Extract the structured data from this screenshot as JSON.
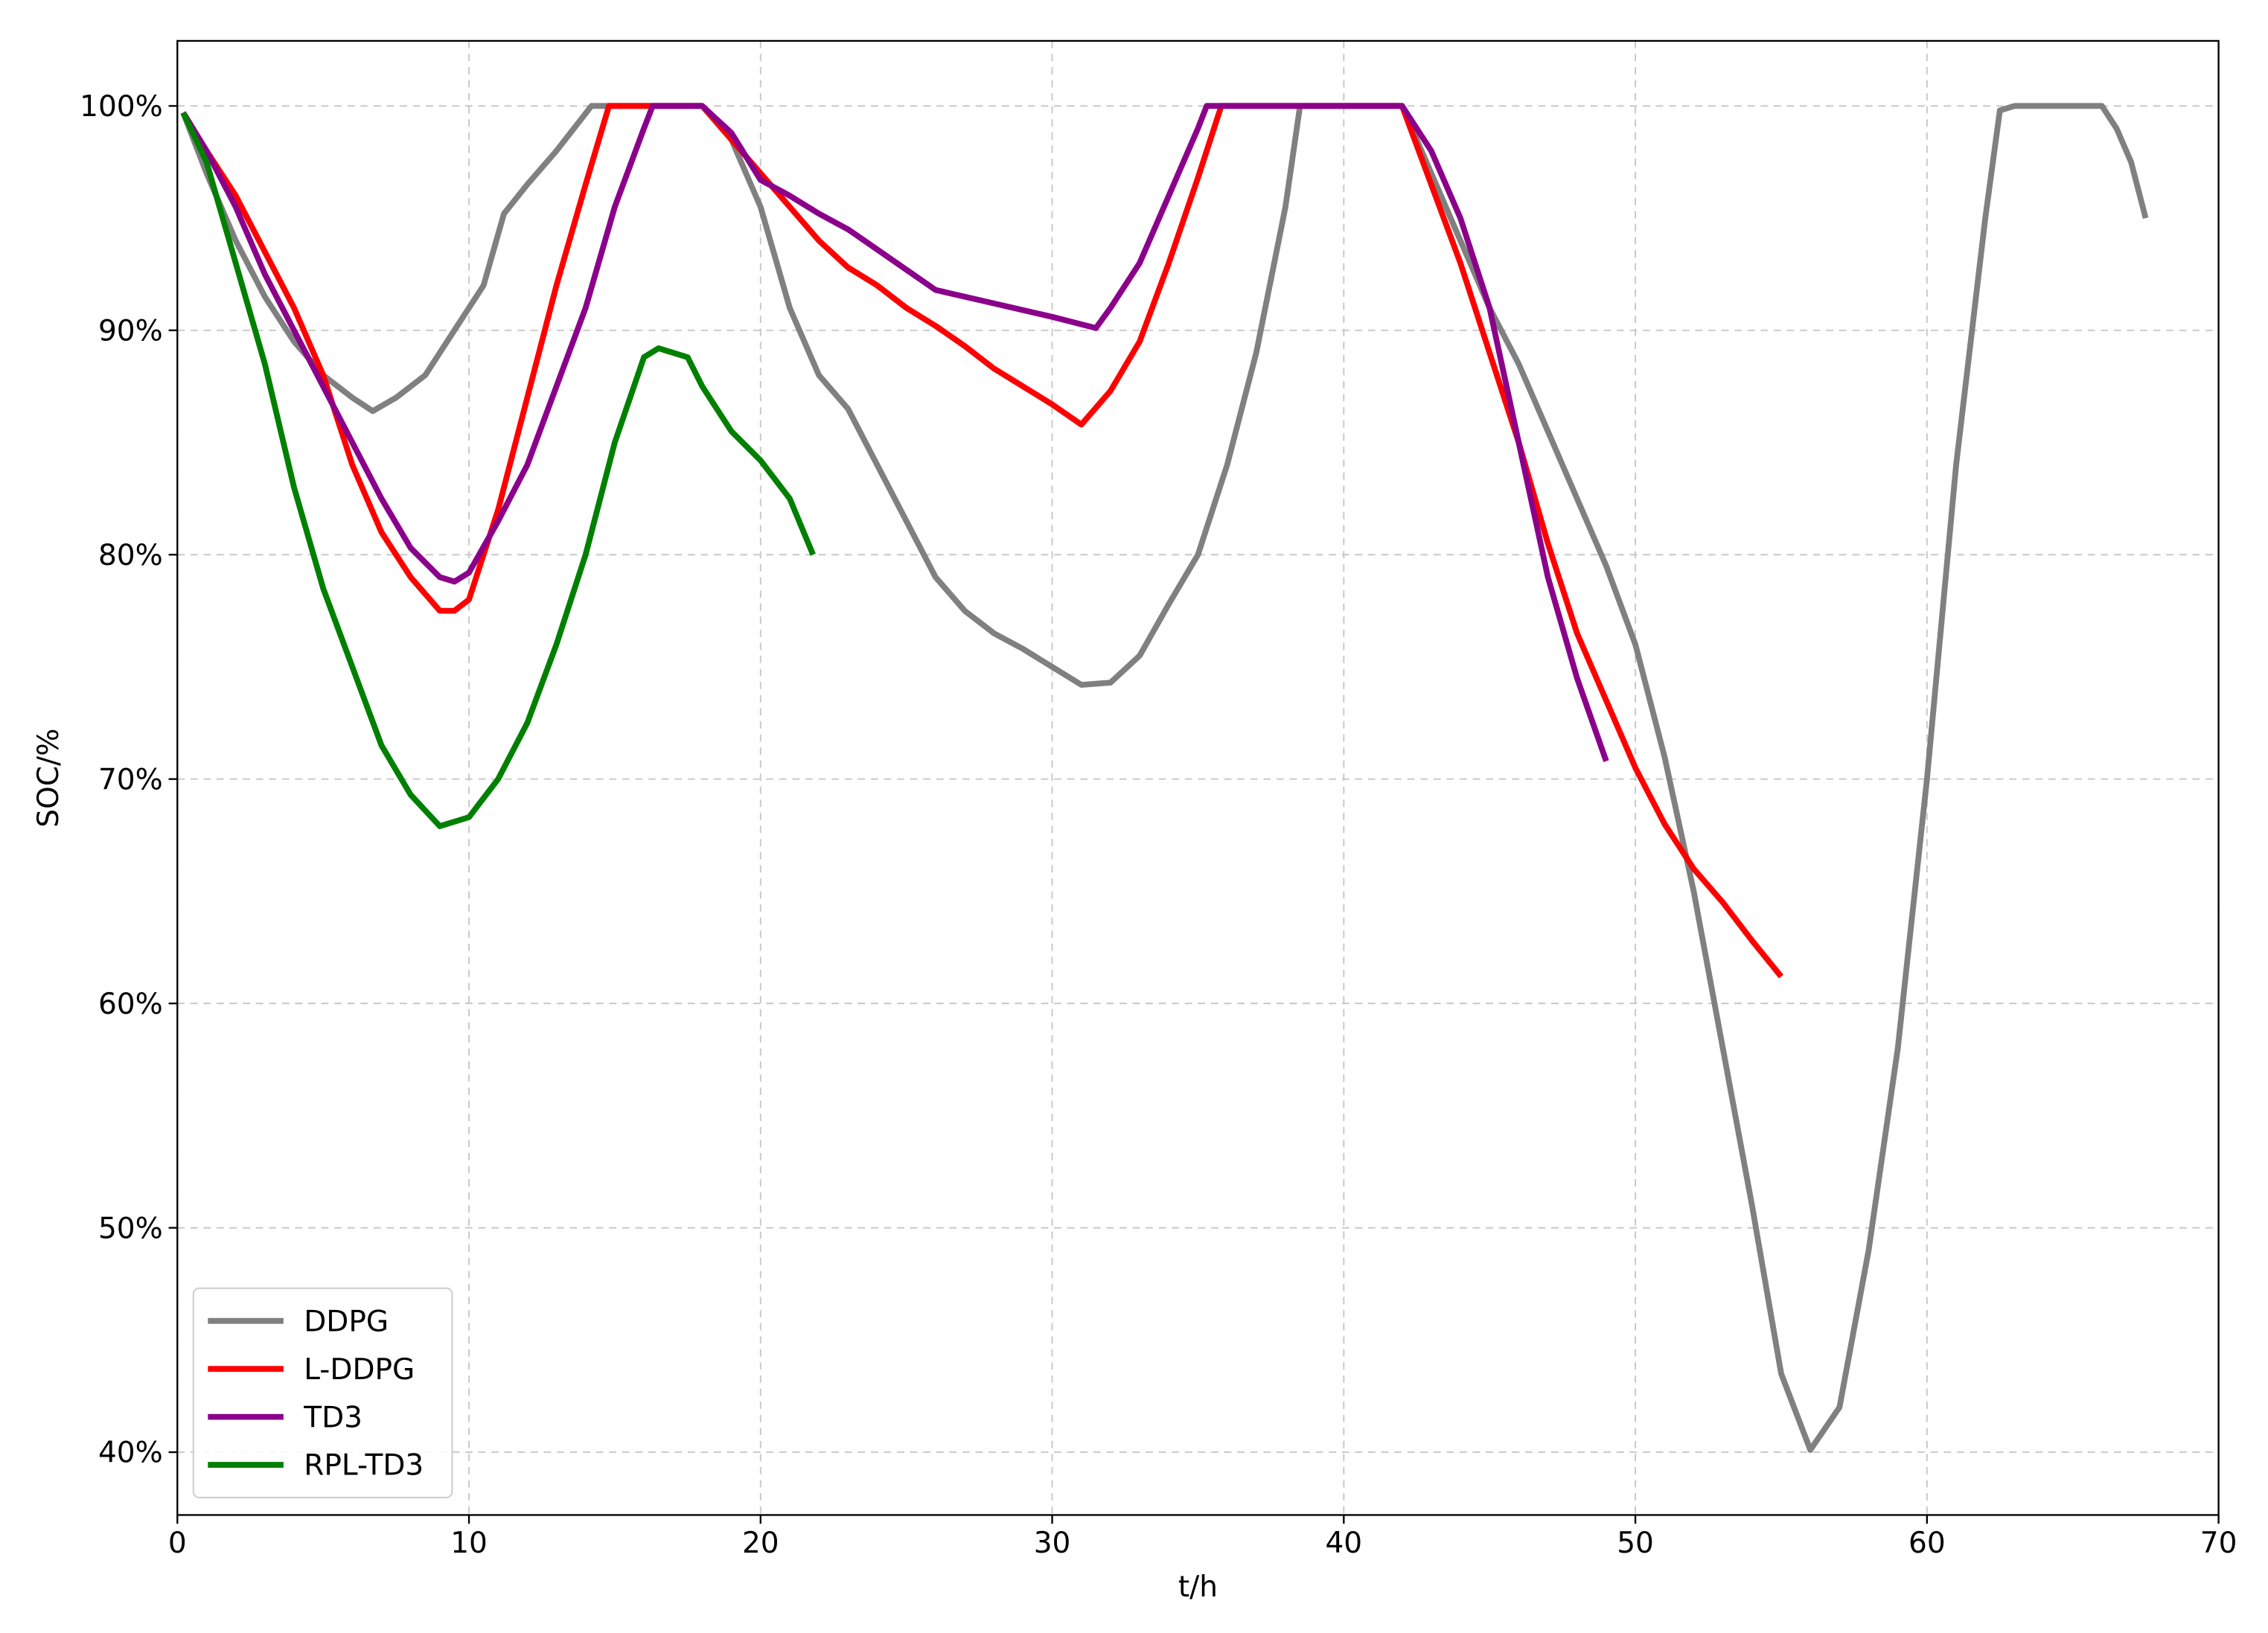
{
  "chart_data": {
    "type": "line",
    "x_label": "t/h",
    "y_label": "SOC/%",
    "xlim": [
      0,
      70
    ],
    "ylim": [
      37.2,
      102.9
    ],
    "xticks": [
      0,
      10,
      20,
      30,
      40,
      50,
      60,
      70
    ],
    "yticks": [
      {
        "value": 40,
        "label": "40%"
      },
      {
        "value": 50,
        "label": "50%"
      },
      {
        "value": 60,
        "label": "60%"
      },
      {
        "value": 70,
        "label": "70%"
      },
      {
        "value": 80,
        "label": "80%"
      },
      {
        "value": 90,
        "label": "90%"
      },
      {
        "value": 100,
        "label": "100%"
      }
    ],
    "grid": true,
    "legend": "lower left",
    "series": [
      {
        "name": "DDPG",
        "color": "#808080",
        "x": [
          0.2,
          1,
          2,
          3,
          4,
          5,
          6,
          6.7,
          7.5,
          8.5,
          9.5,
          10.5,
          11.2,
          12,
          13,
          14.2,
          18,
          19,
          20,
          21,
          22,
          23,
          24,
          25,
          26,
          27,
          28,
          29,
          30,
          31,
          32,
          33,
          34,
          35,
          36,
          37,
          38,
          38.5,
          42,
          43,
          44,
          45,
          46,
          47,
          48,
          49,
          50,
          51,
          52,
          53,
          54,
          55,
          56,
          57,
          58,
          59,
          60,
          61,
          62,
          62.5,
          63,
          66,
          66.5,
          67,
          67.5
        ],
        "values": [
          99.7,
          97,
          94,
          91.5,
          89.5,
          88,
          87,
          86.4,
          87,
          88,
          90,
          92,
          95.2,
          96.5,
          98,
          100,
          100,
          98.5,
          95.5,
          91,
          88,
          86.5,
          84,
          81.5,
          79,
          77.5,
          76.5,
          75.8,
          75,
          74.2,
          74.3,
          75.5,
          77.8,
          80,
          84,
          89,
          95.5,
          100,
          100,
          97,
          94,
          91,
          88.5,
          85.5,
          82.5,
          79.5,
          76,
          71,
          65,
          58,
          51,
          43.5,
          40.1,
          42,
          49,
          58,
          70,
          84,
          95,
          99.8,
          100,
          100,
          99,
          97.5,
          95
        ]
      },
      {
        "name": "L-DDPG",
        "color": "#ff0000",
        "x": [
          0.2,
          1,
          2,
          3,
          4,
          5,
          6,
          7,
          8,
          9,
          9.5,
          10,
          11,
          12,
          13,
          14,
          14.8,
          16,
          18,
          19,
          20,
          21,
          22,
          23,
          24,
          25,
          26,
          27,
          28,
          29,
          30,
          31,
          32,
          33,
          34,
          35,
          35.8,
          42,
          43,
          44,
          45,
          46,
          47,
          48,
          49,
          50,
          51,
          52,
          53,
          54,
          55
        ],
        "values": [
          99.7,
          98,
          96,
          93.5,
          91,
          88,
          84,
          81,
          79,
          77.5,
          77.5,
          78,
          82,
          87,
          92,
          96.5,
          100,
          100,
          100,
          98.5,
          97,
          95.5,
          94,
          92.8,
          92,
          91,
          90.2,
          89.3,
          88.3,
          87.5,
          86.7,
          85.8,
          87.3,
          89.5,
          93,
          96.8,
          100,
          100,
          96.5,
          93,
          89,
          85,
          80.5,
          76.5,
          73.5,
          70.5,
          68,
          66,
          64.5,
          62.8,
          61.2
        ]
      },
      {
        "name": "TD3",
        "color": "#8b008b",
        "x": [
          0.2,
          1,
          2,
          3,
          4,
          5,
          6,
          7,
          8,
          9,
          9.5,
          10,
          11,
          12,
          13,
          14,
          15,
          16,
          16.3,
          18,
          19,
          20,
          21,
          22,
          23,
          24,
          25,
          26,
          28,
          30,
          31.5,
          32,
          33,
          34,
          35,
          35.3,
          42,
          43,
          44,
          45,
          46,
          47,
          48,
          49
        ],
        "values": [
          99.7,
          98,
          95.5,
          92.5,
          90,
          87.5,
          85,
          82.5,
          80.3,
          79,
          78.8,
          79.2,
          81.5,
          84,
          87.5,
          91,
          95.5,
          99,
          100,
          100,
          98.8,
          96.7,
          96,
          95.2,
          94.5,
          93.6,
          92.7,
          91.8,
          91.2,
          90.6,
          90.1,
          91,
          93,
          96,
          99,
          100,
          100,
          98,
          95,
          91,
          85,
          79,
          74.5,
          70.8
        ]
      },
      {
        "name": "RPL-TD3",
        "color": "#008000",
        "x": [
          0.2,
          1,
          2,
          3,
          4,
          5,
          6,
          7,
          8,
          9,
          10,
          11,
          12,
          13,
          14,
          15,
          16,
          16.5,
          17.5,
          18,
          19,
          20,
          21,
          21.8
        ],
        "values": [
          99.7,
          97.5,
          93,
          88.5,
          83,
          78.5,
          75,
          71.5,
          69.3,
          67.9,
          68.3,
          70,
          72.5,
          76,
          80,
          85,
          88.8,
          89.2,
          88.8,
          87.5,
          85.5,
          84.2,
          82.5,
          80
        ]
      }
    ]
  }
}
